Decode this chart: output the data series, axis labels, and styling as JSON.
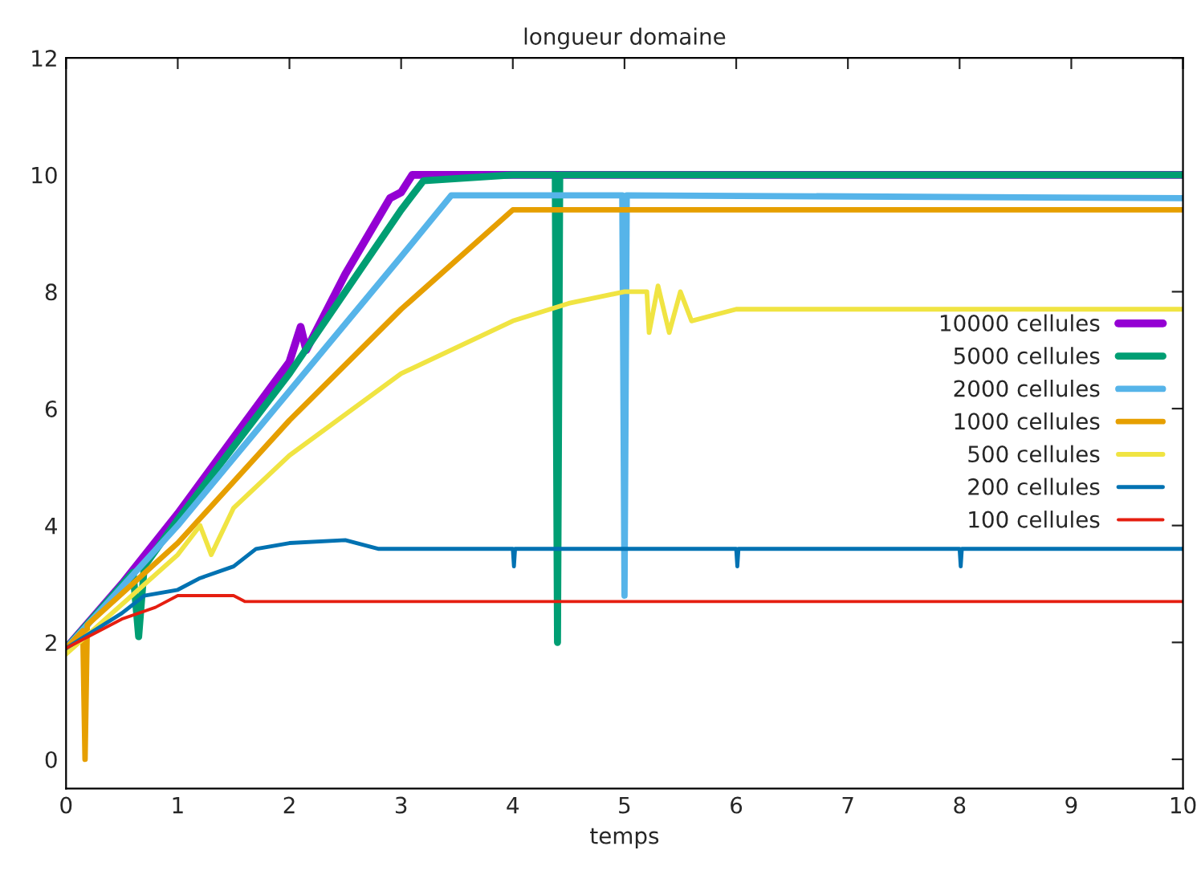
{
  "chart_data": {
    "type": "line",
    "title": "longueur domaine",
    "xlabel": "temps",
    "xlim": [
      0,
      10
    ],
    "xticks": [
      0,
      1,
      2,
      3,
      4,
      5,
      6,
      7,
      8,
      9,
      10
    ],
    "ylim": [
      -0.5,
      12
    ],
    "yticks": [
      0,
      2,
      4,
      6,
      8,
      10,
      12
    ],
    "grid": false,
    "legend": "right",
    "marker": "none",
    "line_style": "solid",
    "series": [
      {
        "name": "10000 cellules",
        "color": "#9400d3",
        "x": [
          0,
          0.5,
          1,
          1.5,
          2,
          2.1,
          2.15,
          2.5,
          2.9,
          3,
          3.1,
          10
        ],
        "values": [
          1.9,
          3.0,
          4.2,
          5.5,
          6.8,
          7.4,
          7.0,
          8.3,
          9.6,
          9.7,
          10,
          10
        ]
      },
      {
        "name": "5000 cellules",
        "color": "#009e73",
        "x": [
          0,
          0.6,
          0.65,
          0.7,
          1,
          2,
          2.5,
          3,
          3.2,
          4,
          4.38,
          4.4,
          4.42,
          10
        ],
        "values": [
          1.9,
          3.2,
          2.1,
          3.3,
          4.1,
          6.6,
          8.0,
          9.4,
          9.9,
          10,
          10,
          2.0,
          10,
          10
        ]
      },
      {
        "name": "2000 cellules",
        "color": "#56b4e9",
        "x": [
          0,
          1,
          2,
          3,
          3.45,
          4.98,
          5.0,
          5.02,
          10
        ],
        "values": [
          1.9,
          4.0,
          6.3,
          8.6,
          9.65,
          9.65,
          2.8,
          9.65,
          9.6
        ]
      },
      {
        "name": "1000 cellules",
        "color": "#e69f00",
        "x": [
          0,
          0.15,
          0.17,
          0.19,
          1,
          2,
          3,
          4,
          10
        ],
        "values": [
          1.9,
          2.2,
          0,
          2.3,
          3.7,
          5.8,
          7.7,
          9.4,
          9.4
        ]
      },
      {
        "name": "500 cellules",
        "color": "#f0e442",
        "x": [
          0,
          1,
          1.2,
          1.3,
          1.5,
          2,
          3,
          4,
          4.5,
          5,
          5.2,
          5.22,
          5.3,
          5.4,
          5.5,
          5.6,
          5.8,
          6,
          10
        ],
        "values": [
          1.8,
          3.5,
          4.0,
          3.5,
          4.3,
          5.2,
          6.6,
          7.5,
          7.8,
          8.0,
          8.0,
          7.3,
          8.1,
          7.3,
          8.0,
          7.5,
          7.6,
          7.7,
          7.7
        ]
      },
      {
        "name": "200 cellules",
        "color": "#0072b2",
        "x": [
          0,
          0.5,
          0.7,
          1,
          1.2,
          1.5,
          1.7,
          2,
          2.5,
          2.8,
          4,
          4.01,
          4.02,
          6,
          6.01,
          6.02,
          8,
          8.01,
          8.02,
          10
        ],
        "values": [
          1.9,
          2.5,
          2.8,
          2.9,
          3.1,
          3.3,
          3.6,
          3.7,
          3.75,
          3.6,
          3.6,
          3.3,
          3.6,
          3.6,
          3.3,
          3.6,
          3.6,
          3.3,
          3.6,
          3.6
        ]
      },
      {
        "name": "100 cellules",
        "color": "#e51e10",
        "x": [
          0,
          0.5,
          0.8,
          1,
          1.5,
          1.6,
          10
        ],
        "values": [
          1.9,
          2.4,
          2.6,
          2.8,
          2.8,
          2.7,
          2.7
        ]
      }
    ]
  }
}
